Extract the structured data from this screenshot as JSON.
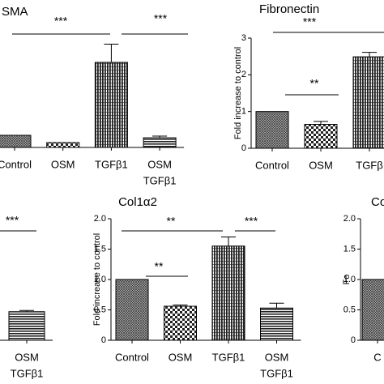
{
  "chart_data": [
    {
      "type": "bar",
      "title": "SMA",
      "categories": [
        "Control",
        "OSM",
        "TGFβ1",
        [
          "OSM",
          "TGFβ1"
        ]
      ],
      "values": [
        1.0,
        0.4,
        7.0,
        0.8
      ],
      "errors": [
        0,
        0,
        1.5,
        0.13
      ],
      "ylim": [
        0,
        10
      ],
      "annotations": [
        "***",
        "***"
      ]
    },
    {
      "type": "bar",
      "title": "Fibronectin",
      "ylabel": "Fold increase to control",
      "categories": [
        "Control",
        "OSM",
        "TGFβ"
      ],
      "values": [
        1.0,
        0.65,
        2.49
      ],
      "errors": [
        0,
        0.08,
        0.12
      ],
      "ylim": [
        0,
        3
      ],
      "yticks": [
        0,
        1,
        2,
        3
      ],
      "annotations": [
        "**",
        "***"
      ]
    },
    {
      "type": "bar",
      "categories": [
        [
          "OSM",
          "TGFβ1"
        ]
      ],
      "values": [
        0.47
      ],
      "errors": [
        0.02
      ],
      "ylim": [
        0,
        2
      ],
      "annotations": [
        "***"
      ]
    },
    {
      "type": "bar",
      "title": "Col1α2",
      "ylabel": "Fold increase to control",
      "categories": [
        "Control",
        "OSM",
        "TGFβ1",
        [
          "OSM",
          "TGFβ1"
        ]
      ],
      "values": [
        1.0,
        0.56,
        1.55,
        0.53
      ],
      "errors": [
        0,
        0.02,
        0.15,
        0.08
      ],
      "ylim": [
        0,
        2
      ],
      "yticks": [
        0,
        0.5,
        {
          "value": 1,
          "label": "1.0"
        },
        1.5,
        {
          "value": 2,
          "label": "2.0"
        }
      ],
      "annotations": [
        "**",
        "**",
        "***"
      ]
    },
    {
      "type": "bar",
      "title": "Co",
      "ylabel": "Fo",
      "categories": [
        "C"
      ],
      "values": [
        1.0
      ],
      "errors": [
        0
      ],
      "ylim": [
        0,
        2
      ],
      "yticks": [
        0,
        0.5,
        {
          "value": 1,
          "label": "1.0"
        },
        1.5,
        {
          "value": 2,
          "label": "2.0"
        }
      ]
    }
  ]
}
